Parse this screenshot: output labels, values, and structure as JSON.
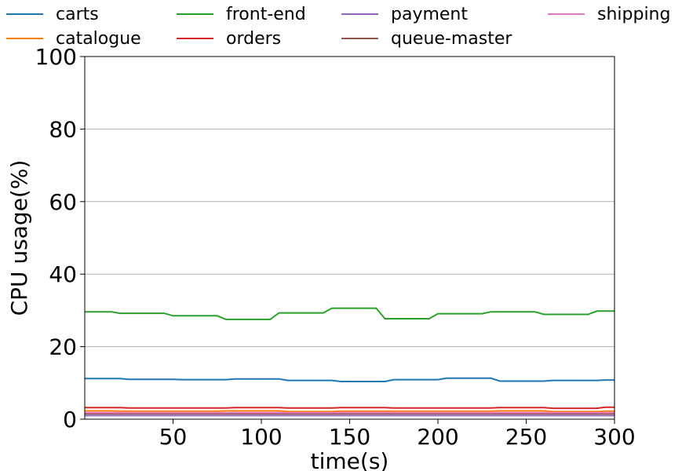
{
  "chart_data": {
    "type": "line",
    "title": "",
    "xlabel": "time(s)",
    "ylabel": "CPU usage(%)",
    "xlim": [
      0,
      300
    ],
    "ylim": [
      0,
      100
    ],
    "xticks": [
      50,
      100,
      150,
      200,
      250,
      300
    ],
    "yticks": [
      0,
      20,
      40,
      60,
      80,
      100
    ],
    "grid": "horizontal",
    "legend_position": "top",
    "x": [
      0,
      5,
      10,
      15,
      20,
      25,
      30,
      35,
      40,
      45,
      50,
      55,
      60,
      65,
      70,
      75,
      80,
      85,
      90,
      95,
      100,
      105,
      110,
      115,
      120,
      125,
      130,
      135,
      140,
      145,
      150,
      155,
      160,
      165,
      170,
      175,
      180,
      185,
      190,
      195,
      200,
      205,
      210,
      215,
      220,
      225,
      230,
      235,
      240,
      245,
      250,
      255,
      260,
      265,
      270,
      275,
      280,
      285,
      290,
      295,
      300
    ],
    "series": [
      {
        "name": "carts",
        "color": "#1f77b4",
        "values": [
          11.2,
          11.2,
          11.2,
          11.2,
          11.2,
          11.0,
          11.0,
          11.0,
          11.0,
          11.0,
          11.0,
          10.9,
          10.9,
          10.9,
          10.9,
          10.9,
          10.9,
          11.1,
          11.1,
          11.1,
          11.1,
          11.1,
          11.1,
          10.7,
          10.7,
          10.7,
          10.7,
          10.7,
          10.7,
          10.4,
          10.4,
          10.4,
          10.4,
          10.4,
          10.4,
          10.9,
          10.9,
          10.9,
          10.9,
          10.9,
          10.9,
          11.3,
          11.3,
          11.3,
          11.3,
          11.3,
          11.3,
          10.5,
          10.5,
          10.5,
          10.5,
          10.5,
          10.5,
          10.7,
          10.7,
          10.7,
          10.7,
          10.7,
          10.7,
          10.8,
          10.8
        ]
      },
      {
        "name": "catalogue",
        "color": "#ff7f0e",
        "values": [
          2.3,
          2.3,
          2.3,
          2.3,
          2.2,
          2.2,
          2.2,
          2.2,
          2.2,
          2.2,
          2.2,
          2.2,
          2.2,
          2.2,
          2.2,
          2.2,
          2.3,
          2.3,
          2.3,
          2.3,
          2.3,
          2.3,
          2.3,
          2.1,
          2.1,
          2.1,
          2.1,
          2.1,
          2.1,
          2.2,
          2.2,
          2.2,
          2.2,
          2.2,
          2.2,
          2.2,
          2.2,
          2.2,
          2.2,
          2.2,
          2.2,
          2.2,
          2.2,
          2.2,
          2.2,
          2.2,
          2.2,
          2.3,
          2.3,
          2.3,
          2.3,
          2.3,
          2.3,
          2.1,
          2.1,
          2.1,
          2.1,
          2.1,
          2.1,
          2.2,
          2.2
        ]
      },
      {
        "name": "front-end",
        "color": "#2ca02c",
        "values": [
          29.6,
          29.6,
          29.6,
          29.6,
          29.2,
          29.2,
          29.2,
          29.2,
          29.2,
          29.2,
          28.5,
          28.5,
          28.5,
          28.5,
          28.5,
          28.5,
          27.5,
          27.5,
          27.5,
          27.5,
          27.5,
          27.5,
          29.3,
          29.3,
          29.3,
          29.3,
          29.3,
          29.3,
          30.6,
          30.6,
          30.6,
          30.6,
          30.6,
          30.6,
          27.7,
          27.7,
          27.7,
          27.7,
          27.7,
          27.7,
          29.1,
          29.1,
          29.1,
          29.1,
          29.1,
          29.1,
          29.6,
          29.6,
          29.6,
          29.6,
          29.6,
          29.6,
          28.9,
          28.9,
          28.9,
          28.9,
          28.9,
          28.9,
          29.8,
          29.8,
          29.8
        ]
      },
      {
        "name": "orders",
        "color": "#d62728",
        "values": [
          3.2,
          3.2,
          3.2,
          3.2,
          3.2,
          3.1,
          3.1,
          3.1,
          3.1,
          3.1,
          3.1,
          3.1,
          3.1,
          3.1,
          3.1,
          3.1,
          3.1,
          3.2,
          3.2,
          3.2,
          3.2,
          3.2,
          3.2,
          3.1,
          3.1,
          3.1,
          3.1,
          3.1,
          3.1,
          3.2,
          3.2,
          3.2,
          3.2,
          3.2,
          3.2,
          3.1,
          3.1,
          3.1,
          3.1,
          3.1,
          3.1,
          3.1,
          3.1,
          3.1,
          3.1,
          3.1,
          3.1,
          3.2,
          3.2,
          3.2,
          3.2,
          3.2,
          3.2,
          3.0,
          3.0,
          3.0,
          3.0,
          3.0,
          3.0,
          3.3,
          3.3
        ]
      },
      {
        "name": "payment",
        "color": "#9467bd",
        "values": [
          1.0,
          1.0,
          1.0,
          1.0,
          1.0,
          1.0,
          1.0,
          1.0,
          1.0,
          1.0,
          1.0,
          1.0,
          1.0,
          1.0,
          1.0,
          1.0,
          1.0,
          1.0,
          1.0,
          1.0,
          1.0,
          1.0,
          1.0,
          1.0,
          1.0,
          1.0,
          1.0,
          1.0,
          1.0,
          1.0,
          1.0,
          1.0,
          1.0,
          1.0,
          1.0,
          1.0,
          1.0,
          1.0,
          1.0,
          1.0,
          1.0,
          1.0,
          1.0,
          1.0,
          1.0,
          1.0,
          1.0,
          1.0,
          1.0,
          1.0,
          1.0,
          1.0,
          1.0,
          1.0,
          1.0,
          1.0,
          1.0,
          1.0,
          1.0,
          1.0,
          1.0
        ]
      },
      {
        "name": "queue-master",
        "color": "#8c564b",
        "values": [
          1.5,
          1.5,
          1.5,
          1.5,
          1.5,
          1.5,
          1.5,
          1.5,
          1.5,
          1.5,
          1.5,
          1.5,
          1.5,
          1.5,
          1.5,
          1.5,
          1.5,
          1.5,
          1.5,
          1.5,
          1.5,
          1.5,
          1.5,
          1.5,
          1.5,
          1.5,
          1.5,
          1.5,
          1.5,
          1.5,
          1.5,
          1.5,
          1.5,
          1.5,
          1.5,
          1.5,
          1.5,
          1.5,
          1.5,
          1.5,
          1.5,
          1.5,
          1.5,
          1.5,
          1.5,
          1.5,
          1.5,
          1.5,
          1.5,
          1.5,
          1.5,
          1.5,
          1.5,
          1.5,
          1.5,
          1.5,
          1.5,
          1.5,
          1.5,
          1.5,
          1.5
        ]
      },
      {
        "name": "shipping",
        "color": "#e377c2",
        "values": [
          1.8,
          1.8,
          1.8,
          1.8,
          1.8,
          1.8,
          1.8,
          1.8,
          1.8,
          1.8,
          1.8,
          1.8,
          1.8,
          1.8,
          1.8,
          1.8,
          1.8,
          1.8,
          1.8,
          1.8,
          1.8,
          1.8,
          1.8,
          1.8,
          1.8,
          1.8,
          1.8,
          1.8,
          1.8,
          1.8,
          1.8,
          1.8,
          1.8,
          1.8,
          1.8,
          1.8,
          1.8,
          1.8,
          1.8,
          1.8,
          1.8,
          1.8,
          1.8,
          1.8,
          1.8,
          1.8,
          1.8,
          1.8,
          1.8,
          1.8,
          1.8,
          1.8,
          1.8,
          1.8,
          1.8,
          1.8,
          1.8,
          1.8,
          1.8,
          1.8,
          1.8
        ]
      }
    ]
  }
}
